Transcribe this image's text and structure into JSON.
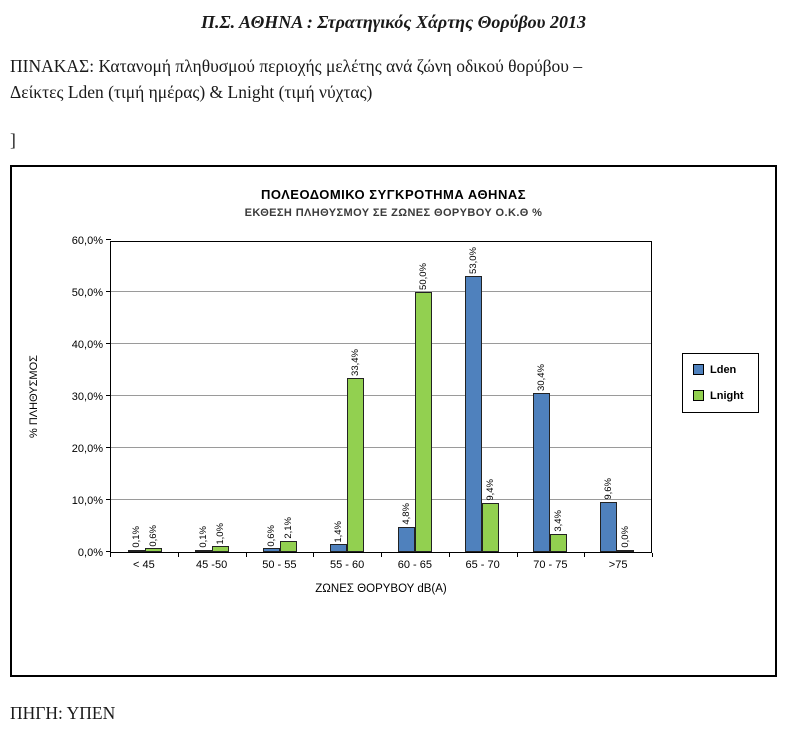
{
  "page": {
    "title": "Π.Σ. ΑΘΗΝΑ : Στρατηγικός Χάρτης Θορύβου 2013",
    "paragraph_lines": [
      "ΠΙΝΑΚΑΣ: Κατανομή πληθυσμού περιοχής μελέτης ανά ζώνη οδικού θορύβου –",
      "Δείκτες Lden (τιμή ημέρας) & Lnight (τιμή νύχτας)"
    ],
    "bracket": "]",
    "source": "ΠΗΓΗ: ΥΠΕΝ"
  },
  "chart_data": {
    "type": "bar",
    "title": "ΠΟΛΕΟΔΟΜΙΚΟ ΣΥΓΚΡΟΤΗΜΑ ΑΘΗΝΑΣ",
    "subtitle": "ΕΚΘΕΣΗ ΠΛΗΘΥΣΜΟΥ ΣΕ ΖΩΝΕΣ ΘΟΡΥΒΟΥ Ο.Κ.Θ %",
    "xlabel": "ΖΩΝΕΣ ΘΟΡΥΒΟΥ dB(A)",
    "ylabel": "% ΠΛΗΘΥΣΜΟΣ",
    "ylim": [
      0,
      60
    ],
    "ytick_step": 10,
    "ytick_labels": [
      "0,0%",
      "10,0%",
      "20,0%",
      "30,0%",
      "40,0%",
      "50,0%",
      "60,0%"
    ],
    "grid": true,
    "legend_position": "right",
    "categories": [
      "< 45",
      "45 -50",
      "50 - 55",
      "55 - 60",
      "60 - 65",
      "65 - 70",
      "70 - 75",
      ">75"
    ],
    "series": [
      {
        "name": "Lden",
        "color": "#4F81BD",
        "values": [
          0.1,
          0.1,
          0.6,
          1.4,
          4.8,
          53.0,
          30.4,
          9.6
        ],
        "labels": [
          "0,1%",
          "0,1%",
          "0,6%",
          "1,4%",
          "4,8%",
          "53,0%",
          "30,4%",
          "9,6%"
        ]
      },
      {
        "name": "Lnight",
        "color": "#92D050",
        "values": [
          0.6,
          1.0,
          2.1,
          33.4,
          50.0,
          9.4,
          3.4,
          0.0
        ],
        "labels": [
          "0,6%",
          "1,0%",
          "2,1%",
          "33,4%",
          "50,0%",
          "9,4%",
          "3,4%",
          "0,0%"
        ]
      }
    ],
    "gridline_color": "#9a9a9a"
  }
}
